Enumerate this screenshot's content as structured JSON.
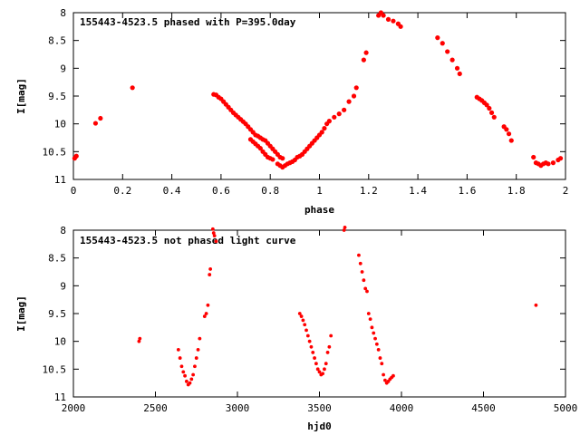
{
  "chart_data": [
    {
      "type": "scatter",
      "title": "155443-4523.5 phased with P=395.0day",
      "xlabel": "phase",
      "ylabel": "I[mag]",
      "xlim": [
        0,
        2
      ],
      "ylim": [
        11,
        8
      ],
      "y_inverted": true,
      "grid": false,
      "marker_color": "#ff0000",
      "x_ticks": [
        "0",
        "0.2",
        "0.4",
        "0.6",
        "0.8",
        "1",
        "1.2",
        "1.4",
        "1.6",
        "1.8",
        "2"
      ],
      "y_ticks": [
        "8",
        "8.5",
        "9",
        "9.5",
        "10",
        "10.5",
        "11"
      ],
      "series": [
        {
          "values": [
            [
              0.005,
              10.62
            ],
            [
              0.012,
              10.58
            ],
            [
              0.09,
              9.99
            ],
            [
              0.11,
              9.9
            ],
            [
              0.24,
              9.35
            ],
            [
              0.57,
              9.47
            ],
            [
              0.58,
              9.48
            ],
            [
              0.59,
              9.52
            ],
            [
              0.6,
              9.55
            ],
            [
              0.61,
              9.6
            ],
            [
              0.62,
              9.65
            ],
            [
              0.63,
              9.7
            ],
            [
              0.64,
              9.75
            ],
            [
              0.65,
              9.8
            ],
            [
              0.66,
              9.84
            ],
            [
              0.67,
              9.88
            ],
            [
              0.68,
              9.92
            ],
            [
              0.69,
              9.96
            ],
            [
              0.7,
              10.0
            ],
            [
              0.71,
              10.05
            ],
            [
              0.72,
              10.1
            ],
            [
              0.73,
              10.15
            ],
            [
              0.72,
              10.28
            ],
            [
              0.73,
              10.32
            ],
            [
              0.74,
              10.36
            ],
            [
              0.75,
              10.4
            ],
            [
              0.76,
              10.44
            ],
            [
              0.77,
              10.5
            ],
            [
              0.78,
              10.55
            ],
            [
              0.79,
              10.6
            ],
            [
              0.8,
              10.62
            ],
            [
              0.81,
              10.64
            ],
            [
              0.74,
              10.2
            ],
            [
              0.75,
              10.22
            ],
            [
              0.76,
              10.25
            ],
            [
              0.77,
              10.28
            ],
            [
              0.78,
              10.3
            ],
            [
              0.79,
              10.35
            ],
            [
              0.8,
              10.4
            ],
            [
              0.81,
              10.45
            ],
            [
              0.82,
              10.5
            ],
            [
              0.83,
              10.55
            ],
            [
              0.84,
              10.6
            ],
            [
              0.85,
              10.62
            ],
            [
              0.83,
              10.72
            ],
            [
              0.84,
              10.75
            ],
            [
              0.85,
              10.78
            ],
            [
              0.86,
              10.75
            ],
            [
              0.87,
              10.72
            ],
            [
              0.88,
              10.7
            ],
            [
              0.89,
              10.68
            ],
            [
              0.9,
              10.65
            ],
            [
              0.91,
              10.6
            ],
            [
              0.92,
              10.58
            ],
            [
              0.93,
              10.55
            ],
            [
              0.94,
              10.5
            ],
            [
              0.95,
              10.45
            ],
            [
              0.96,
              10.4
            ],
            [
              0.97,
              10.35
            ],
            [
              0.98,
              10.3
            ],
            [
              0.99,
              10.25
            ],
            [
              1.0,
              10.2
            ],
            [
              1.01,
              10.15
            ],
            [
              1.02,
              10.08
            ],
            [
              1.03,
              10.0
            ],
            [
              1.04,
              9.95
            ],
            [
              1.06,
              9.88
            ],
            [
              1.08,
              9.82
            ],
            [
              1.1,
              9.75
            ],
            [
              1.12,
              9.6
            ],
            [
              1.14,
              9.5
            ],
            [
              1.15,
              9.35
            ],
            [
              1.18,
              8.85
            ],
            [
              1.19,
              8.72
            ],
            [
              1.24,
              8.05
            ],
            [
              1.25,
              8.0
            ],
            [
              1.26,
              8.05
            ],
            [
              1.28,
              8.12
            ],
            [
              1.3,
              8.15
            ],
            [
              1.32,
              8.2
            ],
            [
              1.33,
              8.25
            ],
            [
              1.48,
              8.45
            ],
            [
              1.5,
              8.55
            ],
            [
              1.52,
              8.7
            ],
            [
              1.54,
              8.85
            ],
            [
              1.56,
              9.0
            ],
            [
              1.57,
              9.1
            ],
            [
              1.64,
              9.52
            ],
            [
              1.65,
              9.55
            ],
            [
              1.66,
              9.58
            ],
            [
              1.67,
              9.62
            ],
            [
              1.68,
              9.66
            ],
            [
              1.69,
              9.72
            ],
            [
              1.7,
              9.8
            ],
            [
              1.71,
              9.88
            ],
            [
              1.75,
              10.05
            ],
            [
              1.76,
              10.1
            ],
            [
              1.77,
              10.18
            ],
            [
              1.78,
              10.3
            ],
            [
              1.87,
              10.6
            ],
            [
              1.88,
              10.7
            ],
            [
              1.89,
              10.72
            ],
            [
              1.9,
              10.75
            ],
            [
              1.91,
              10.72
            ],
            [
              1.92,
              10.7
            ],
            [
              1.93,
              10.72
            ],
            [
              1.95,
              10.7
            ],
            [
              1.97,
              10.65
            ],
            [
              1.98,
              10.62
            ]
          ]
        }
      ]
    },
    {
      "type": "scatter",
      "title": "155443-4523.5 not phased light curve",
      "xlabel": "hjd0",
      "ylabel": "I[mag]",
      "xlim": [
        2000,
        5000
      ],
      "ylim": [
        11,
        8
      ],
      "y_inverted": true,
      "grid": false,
      "marker_color": "#ff0000",
      "x_ticks": [
        "2000",
        "2500",
        "3000",
        "3500",
        "4000",
        "4500",
        "5000"
      ],
      "y_ticks": [
        "8",
        "8.5",
        "9",
        "9.5",
        "10",
        "10.5",
        "11"
      ],
      "series": [
        {
          "values": [
            [
              2400,
              10.0
            ],
            [
              2405,
              9.95
            ],
            [
              2640,
              10.15
            ],
            [
              2650,
              10.3
            ],
            [
              2660,
              10.45
            ],
            [
              2670,
              10.55
            ],
            [
              2680,
              10.62
            ],
            [
              2690,
              10.72
            ],
            [
              2700,
              10.78
            ],
            [
              2710,
              10.75
            ],
            [
              2720,
              10.68
            ],
            [
              2730,
              10.6
            ],
            [
              2740,
              10.45
            ],
            [
              2750,
              10.3
            ],
            [
              2760,
              10.15
            ],
            [
              2770,
              9.95
            ],
            [
              2800,
              9.55
            ],
            [
              2810,
              9.5
            ],
            [
              2820,
              9.35
            ],
            [
              2830,
              8.8
            ],
            [
              2835,
              8.7
            ],
            [
              2850,
              7.98
            ],
            [
              2855,
              8.05
            ],
            [
              2860,
              8.1
            ],
            [
              2870,
              8.2
            ],
            [
              3380,
              9.5
            ],
            [
              3390,
              9.55
            ],
            [
              3400,
              9.62
            ],
            [
              3410,
              9.7
            ],
            [
              3420,
              9.8
            ],
            [
              3430,
              9.9
            ],
            [
              3440,
              10.0
            ],
            [
              3450,
              10.1
            ],
            [
              3460,
              10.2
            ],
            [
              3470,
              10.3
            ],
            [
              3480,
              10.4
            ],
            [
              3490,
              10.5
            ],
            [
              3500,
              10.55
            ],
            [
              3510,
              10.6
            ],
            [
              3520,
              10.58
            ],
            [
              3530,
              10.5
            ],
            [
              3540,
              10.4
            ],
            [
              3550,
              10.2
            ],
            [
              3560,
              10.1
            ],
            [
              3570,
              9.9
            ],
            [
              3650,
              8.0
            ],
            [
              3655,
              7.95
            ],
            [
              3740,
              8.45
            ],
            [
              3750,
              8.6
            ],
            [
              3760,
              8.75
            ],
            [
              3770,
              8.9
            ],
            [
              3780,
              9.05
            ],
            [
              3790,
              9.1
            ],
            [
              3800,
              9.5
            ],
            [
              3810,
              9.6
            ],
            [
              3820,
              9.75
            ],
            [
              3830,
              9.85
            ],
            [
              3840,
              9.95
            ],
            [
              3850,
              10.05
            ],
            [
              3860,
              10.15
            ],
            [
              3870,
              10.3
            ],
            [
              3880,
              10.4
            ],
            [
              3890,
              10.6
            ],
            [
              3900,
              10.7
            ],
            [
              3910,
              10.75
            ],
            [
              3920,
              10.72
            ],
            [
              3930,
              10.68
            ],
            [
              3940,
              10.65
            ],
            [
              3950,
              10.62
            ],
            [
              4820,
              9.35
            ]
          ]
        }
      ]
    }
  ]
}
